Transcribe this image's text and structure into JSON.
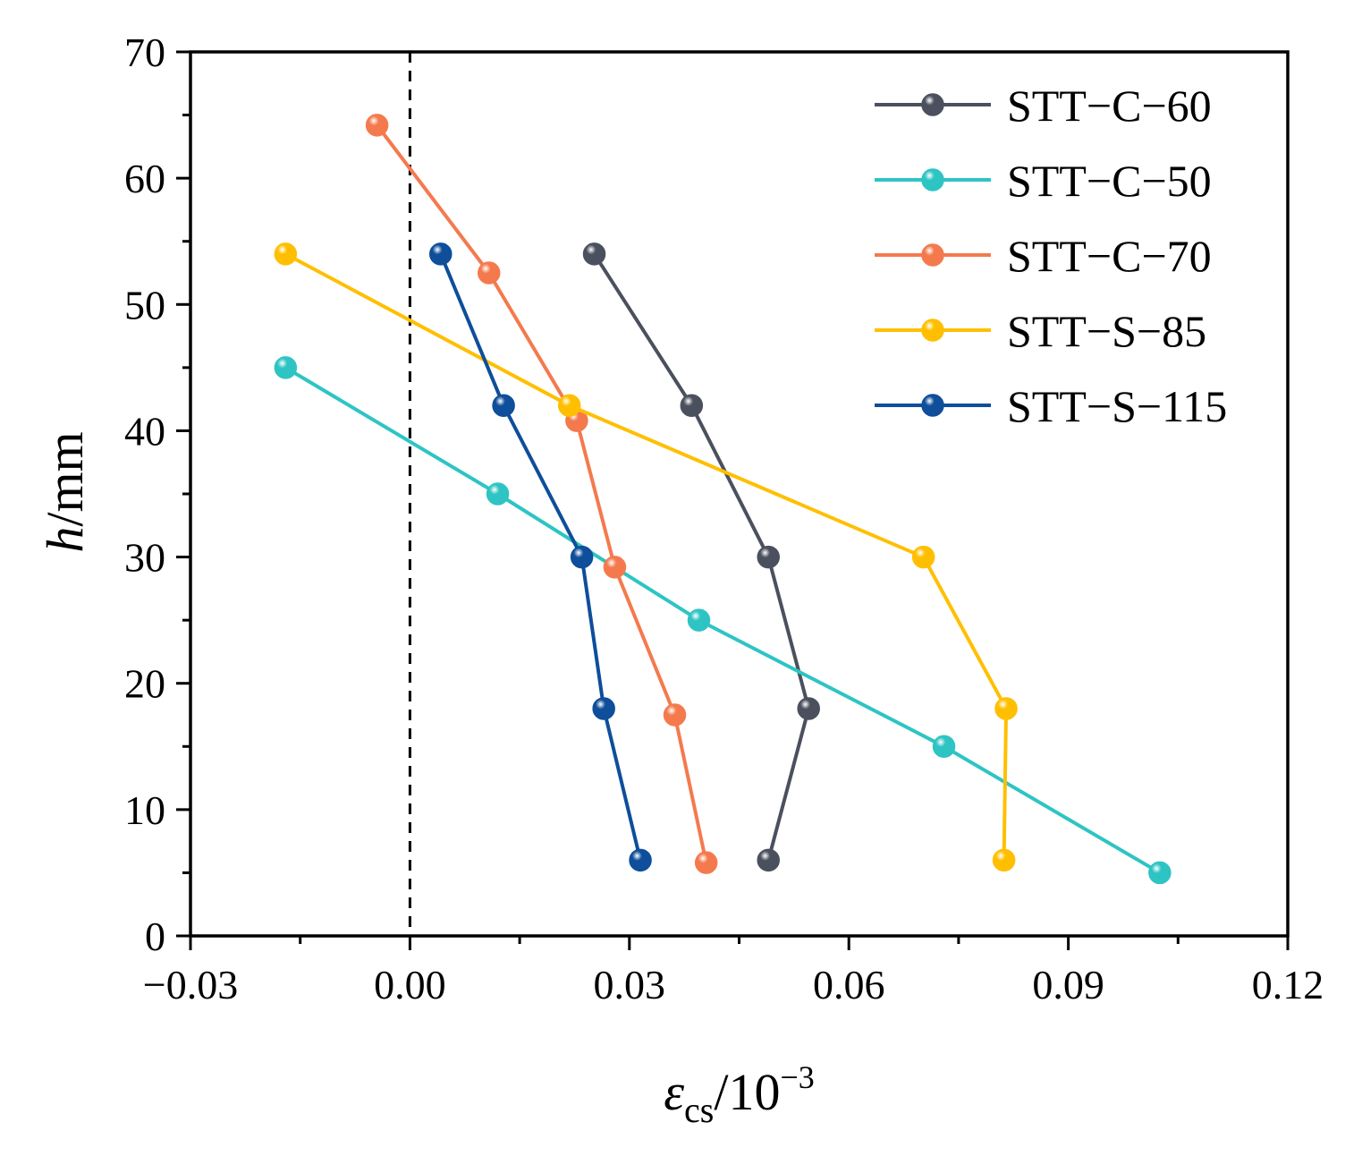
{
  "chart_data": {
    "type": "line",
    "title": "",
    "xlabel": {
      "symbol": "ε",
      "subscript": "cs",
      "unit": "/10",
      "exponent": "−3"
    },
    "ylabel": {
      "symbol": "h",
      "unit": "/mm"
    },
    "xlim": [
      -0.03,
      0.12
    ],
    "ylim": [
      0,
      70
    ],
    "xticks": [
      -0.03,
      0.0,
      0.03,
      0.06,
      0.09,
      0.12
    ],
    "xtick_labels": [
      "−0.03",
      "0.00",
      "0.03",
      "0.06",
      "0.09",
      "0.12"
    ],
    "yticks": [
      0,
      10,
      20,
      30,
      40,
      50,
      60,
      70
    ],
    "ytick_labels": [
      "0",
      "10",
      "20",
      "30",
      "40",
      "50",
      "60",
      "70"
    ],
    "reference_line": {
      "x": 0,
      "style": "dashed"
    },
    "grid": false,
    "legend_position": "top-right",
    "series": [
      {
        "name": "STT−C−60",
        "color": "#4b505e",
        "x": [
          0.049,
          0.0545,
          0.049,
          0.0385,
          0.0252
        ],
        "y": [
          6,
          18,
          30,
          42,
          54
        ]
      },
      {
        "name": "STT−C−50",
        "color": "#2ec4c4",
        "x": [
          0.1025,
          0.073,
          0.0395,
          0.012,
          -0.017
        ],
        "y": [
          5,
          15,
          25,
          35,
          45
        ]
      },
      {
        "name": "STT−C−70",
        "color": "#f47a4e",
        "x": [
          0.0405,
          0.0362,
          0.028,
          0.0228,
          0.0108,
          -0.0045
        ],
        "y": [
          5.8,
          17.5,
          29.2,
          40.8,
          52.5,
          64.2
        ]
      },
      {
        "name": "STT−S−85",
        "color": "#ffbf00",
        "x": [
          0.0812,
          0.0815,
          0.0702,
          0.0218,
          -0.017
        ],
        "y": [
          6,
          18,
          30,
          42,
          54
        ]
      },
      {
        "name": "STT−S−115",
        "color": "#0e4e9a",
        "x": [
          0.0315,
          0.0265,
          0.0235,
          0.0128,
          0.0042
        ],
        "y": [
          6,
          18,
          30,
          42,
          54
        ]
      }
    ]
  }
}
